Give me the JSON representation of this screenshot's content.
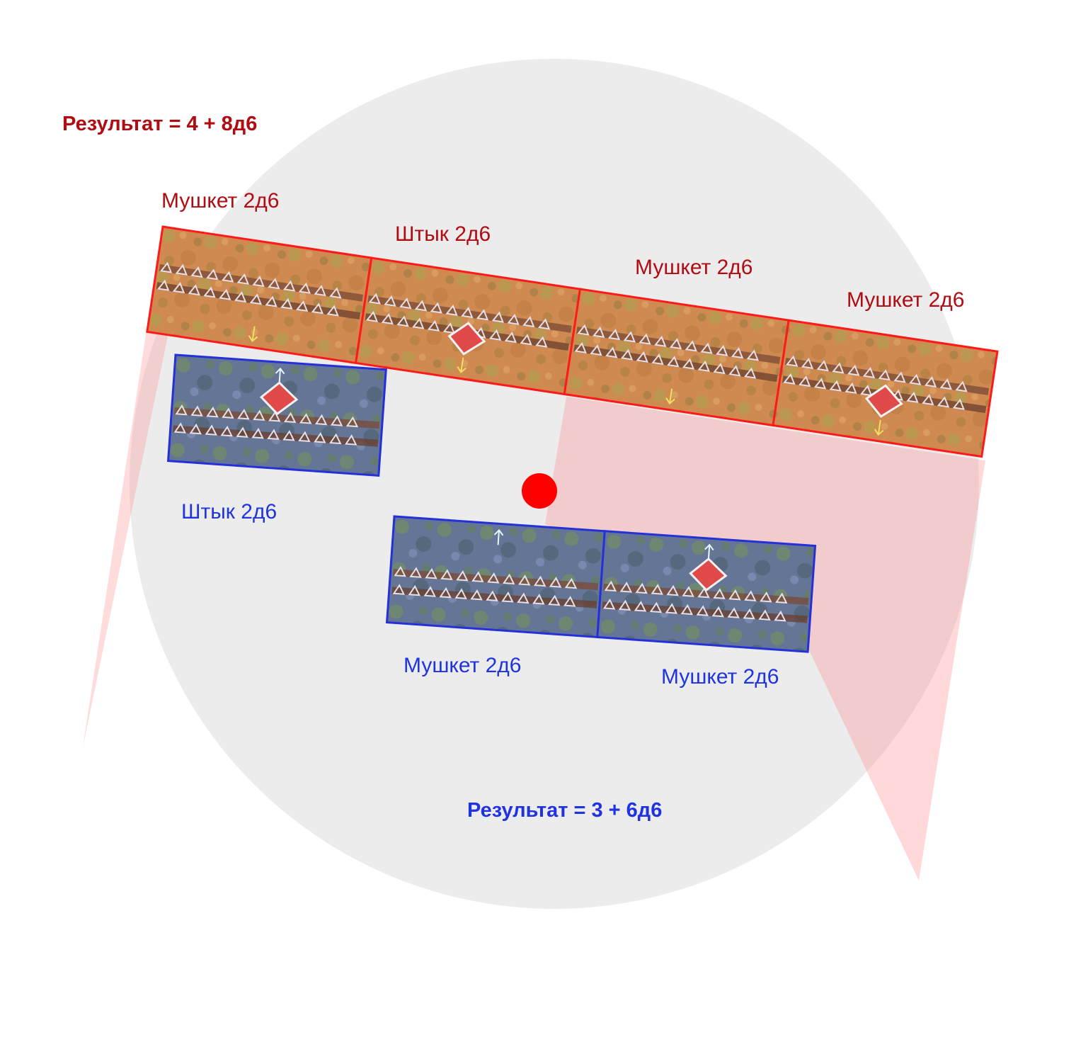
{
  "colors": {
    "red_team": "#b00c12",
    "blue_team": "#1f33e0",
    "red_stroke": "#ff1a1a",
    "blue_stroke": "#2431d8",
    "circle_fill": "#ececec",
    "fire_zone": "#f7b6b6",
    "center_dot": "#ff0000"
  },
  "red_side": {
    "result": "Результат = 4 + 8д6",
    "units": [
      {
        "label": "Мушкет 2д6",
        "flag": false
      },
      {
        "label": "Штык 2д6",
        "flag": true
      },
      {
        "label": "Мушкет 2д6",
        "flag": false
      },
      {
        "label": "Мушкет 2д6",
        "flag": true
      }
    ]
  },
  "blue_side": {
    "result": "Результат = 3 + 6д6",
    "units": [
      {
        "label": "Штык 2д6",
        "flag": true
      },
      {
        "label": "Мушкет 2д6",
        "flag": false
      },
      {
        "label": "Мушкет 2д6",
        "flag": true
      }
    ]
  },
  "icons": [
    "facing-arrow-icon",
    "regiment-flag-icon",
    "center-point-icon"
  ]
}
